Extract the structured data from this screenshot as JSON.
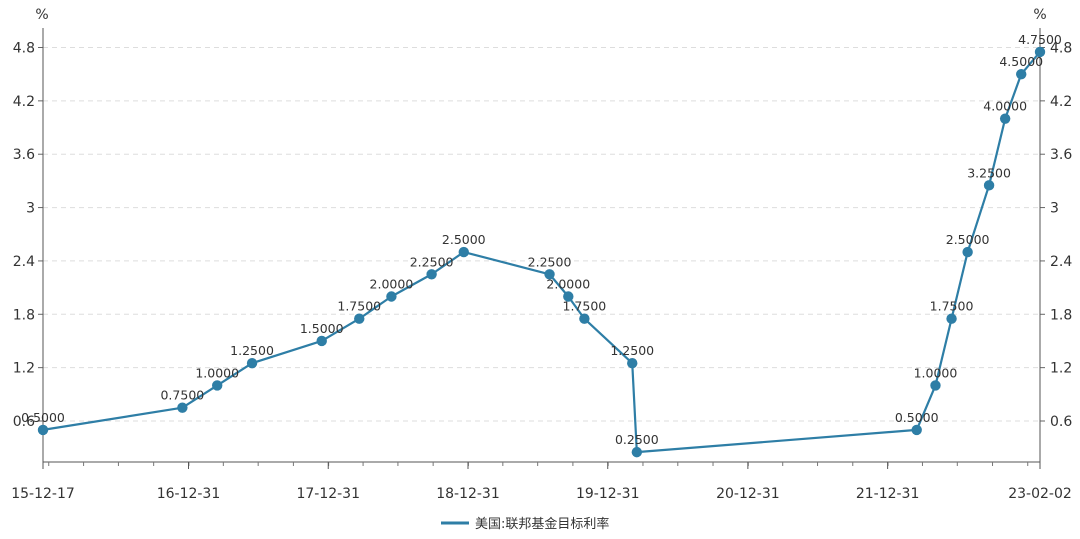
{
  "chart_data": {
    "type": "line",
    "title": "",
    "xlabel": "",
    "ylabel_left": "%",
    "ylabel_right": "%",
    "ylim": [
      0,
      4.8
    ],
    "y_ticks": [
      "0.6",
      "1.2",
      "1.8",
      "2.4",
      "3",
      "3.6",
      "4.2",
      "4.8"
    ],
    "x_ticks": [
      "15-12-17",
      "16-12-31",
      "17-12-31",
      "18-12-31",
      "19-12-31",
      "20-12-31",
      "21-12-31",
      "23-02-02"
    ],
    "x_range": [
      "2015-12-17",
      "2023-02-02"
    ],
    "grid": true,
    "legend_position": "bottom",
    "series": [
      {
        "name": "美国:联邦基金目标利率",
        "color": "#2e7ea6",
        "points": [
          {
            "x": "2015-12-17",
            "y": 0.5,
            "label": "0.5000"
          },
          {
            "x": "2016-12-15",
            "y": 0.75,
            "label": "0.7500"
          },
          {
            "x": "2017-03-16",
            "y": 1.0,
            "label": "1.0000"
          },
          {
            "x": "2017-06-15",
            "y": 1.25,
            "label": "1.2500"
          },
          {
            "x": "2017-12-14",
            "y": 1.5,
            "label": "1.5000"
          },
          {
            "x": "2018-03-22",
            "y": 1.75,
            "label": "1.7500"
          },
          {
            "x": "2018-06-14",
            "y": 2.0,
            "label": "2.0000"
          },
          {
            "x": "2018-09-27",
            "y": 2.25,
            "label": "2.2500"
          },
          {
            "x": "2018-12-20",
            "y": 2.5,
            "label": "2.5000"
          },
          {
            "x": "2019-08-01",
            "y": 2.25,
            "label": "2.2500"
          },
          {
            "x": "2019-09-19",
            "y": 2.0,
            "label": "2.0000"
          },
          {
            "x": "2019-10-31",
            "y": 1.75,
            "label": "1.7500"
          },
          {
            "x": "2020-03-04",
            "y": 1.25,
            "label": "1.2500"
          },
          {
            "x": "2020-03-16",
            "y": 0.25,
            "label": "0.2500"
          },
          {
            "x": "2022-03-17",
            "y": 0.5,
            "label": "0.5000"
          },
          {
            "x": "2022-05-05",
            "y": 1.0,
            "label": "1.0000"
          },
          {
            "x": "2022-06-16",
            "y": 1.75,
            "label": "1.7500"
          },
          {
            "x": "2022-07-28",
            "y": 2.5,
            "label": "2.5000"
          },
          {
            "x": "2022-09-22",
            "y": 3.25,
            "label": "3.2500"
          },
          {
            "x": "2022-11-03",
            "y": 4.0,
            "label": "4.0000"
          },
          {
            "x": "2022-12-15",
            "y": 4.5,
            "label": "4.5000"
          },
          {
            "x": "2023-02-02",
            "y": 4.75,
            "label": "4.7500"
          }
        ]
      }
    ]
  }
}
